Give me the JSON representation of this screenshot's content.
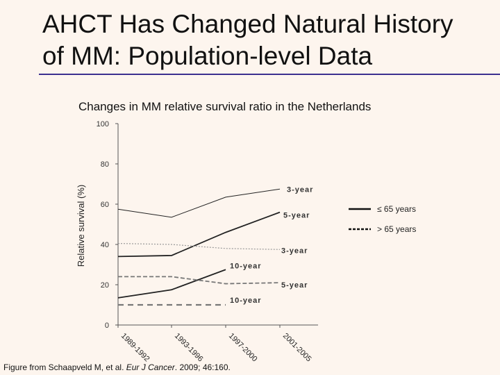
{
  "title_lines": [
    "AHCT Has Changed Natural History",
    "of MM: Population-level Data"
  ],
  "source": {
    "prefix": "Figure from Schaapveld M, et al. ",
    "journal": "Eur J Cancer",
    "suffix": ". 2009; 46:160."
  },
  "colors": {
    "accent": "#3b2f8f",
    "line": "#222222",
    "dotted": "#999999",
    "dashed": "#777777"
  },
  "chart_data": {
    "type": "line",
    "title": "Changes in MM relative survival ratio in the Netherlands",
    "ylabel": "Relative survival (%)",
    "xlabel": "",
    "ylim": [
      0,
      100
    ],
    "yticks": [
      "0",
      "20",
      "40",
      "60",
      "80",
      "100"
    ],
    "categories": [
      "1989-1992",
      "1993-1996",
      "1997-2000",
      "2001-2005"
    ],
    "grid": false,
    "legend": {
      "position": "right",
      "entries": [
        {
          "label": "≤ 65 years",
          "style": "solid"
        },
        {
          "label": "> 65 years",
          "style": "dashed"
        }
      ]
    },
    "series": [
      {
        "group": "≤ 65 years",
        "label": "3-year",
        "style": "thin-solid",
        "values": [
          57.5,
          53.5,
          63.5,
          67.5
        ]
      },
      {
        "group": "≤ 65 years",
        "label": "5-year",
        "style": "solid",
        "values": [
          34,
          34.5,
          46,
          56
        ]
      },
      {
        "group": "≤ 65 years",
        "label": "10-year",
        "style": "solid",
        "values": [
          13.5,
          17.5,
          27.5,
          null
        ]
      },
      {
        "group": "> 65 years",
        "label": "3-year",
        "style": "dotted",
        "values": [
          40.5,
          40,
          38,
          37.5
        ]
      },
      {
        "group": "> 65 years",
        "label": "5-year",
        "style": "dashed",
        "values": [
          24,
          24,
          20.5,
          21
        ]
      },
      {
        "group": "> 65 years",
        "label": "10-year",
        "style": "wide-dashed",
        "values": [
          10,
          10,
          10,
          null
        ]
      }
    ]
  }
}
